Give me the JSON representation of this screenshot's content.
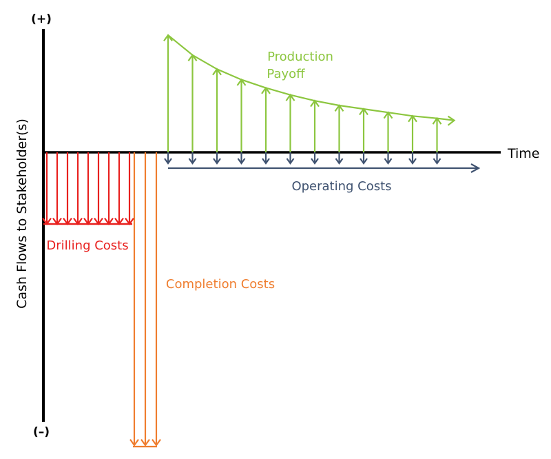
{
  "axes": {
    "y_top_label": "(+)",
    "y_bottom_label": "(–)",
    "y_axis_title": "Cash Flows to Stakeholder(s)",
    "x_axis_title": "Time"
  },
  "labels": {
    "production": [
      "Production",
      "Payoff"
    ],
    "operating": "Operating Costs",
    "drilling": "Drilling Costs",
    "completion": "Completion Costs"
  },
  "colors": {
    "axis": "#000000",
    "production": "#8cc63f",
    "operating": "#3f5270",
    "drilling": "#e8201e",
    "completion": "#ef7d2e"
  },
  "cash_flows": {
    "drilling_arrow_count": 9,
    "completion_arrow_count": 3,
    "production_arrow_count": 12,
    "operating_arrow_count": 12,
    "production_relative_magnitudes": [
      1.0,
      0.83,
      0.71,
      0.62,
      0.55,
      0.49,
      0.44,
      0.4,
      0.37,
      0.34,
      0.31,
      0.29
    ],
    "drilling_relative_magnitude": 0.26,
    "completion_relative_magnitude": 1.0,
    "operating_relative_magnitude": 0.05
  }
}
